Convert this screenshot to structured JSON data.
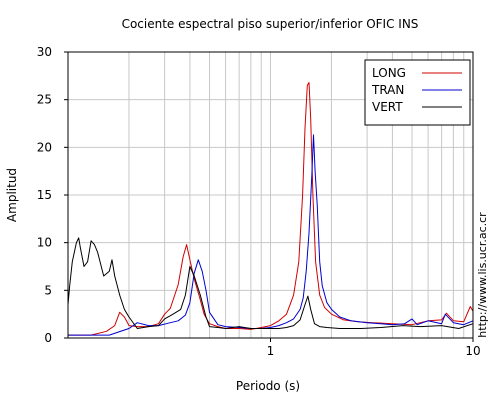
{
  "chart_data": {
    "type": "line",
    "title": "Cociente espectral piso superior/inferior  OFIC INS",
    "xlabel": "Periodo (s)",
    "ylabel": "Amplitud",
    "x_scale": "log",
    "xlim": [
      0.1,
      10
    ],
    "ylim": [
      0,
      30
    ],
    "x_tick_labels": [
      {
        "value": 1,
        "label": "1"
      },
      {
        "value": 10,
        "label": "10"
      }
    ],
    "y_ticks": [
      0,
      5,
      10,
      15,
      20,
      25,
      30
    ],
    "grid": true,
    "legend_position": "top-right",
    "side_annotation": "http://www.lis.ucr.ac.cr",
    "series": [
      {
        "name": "LONG",
        "color": "#d00000",
        "x": [
          0.1,
          0.13,
          0.155,
          0.17,
          0.18,
          0.19,
          0.2,
          0.22,
          0.25,
          0.28,
          0.3,
          0.32,
          0.35,
          0.37,
          0.385,
          0.4,
          0.42,
          0.45,
          0.47,
          0.5,
          0.55,
          0.6,
          0.7,
          0.8,
          0.9,
          1.0,
          1.1,
          1.2,
          1.3,
          1.38,
          1.44,
          1.48,
          1.52,
          1.55,
          1.58,
          1.62,
          1.67,
          1.75,
          1.85,
          2.0,
          2.3,
          2.7,
          3.2,
          4.0,
          5.0,
          6.0,
          7.0,
          7.4,
          8.0,
          9.0,
          9.7,
          10.0
        ],
        "values": [
          0.3,
          0.3,
          0.7,
          1.3,
          2.7,
          2.2,
          1.3,
          1.2,
          1.2,
          1.5,
          2.5,
          3.1,
          5.6,
          8.5,
          9.8,
          8.2,
          6.2,
          4.0,
          2.5,
          1.5,
          1.2,
          1.0,
          1.0,
          0.9,
          1.1,
          1.3,
          1.8,
          2.5,
          4.5,
          8.0,
          15.0,
          22.0,
          26.5,
          26.8,
          23.0,
          15.0,
          8.0,
          4.5,
          3.2,
          2.5,
          1.9,
          1.7,
          1.6,
          1.5,
          1.4,
          1.8,
          1.9,
          2.6,
          1.8,
          1.7,
          3.3,
          2.8
        ]
      },
      {
        "name": "TRAN",
        "color": "#0000d0",
        "x": [
          0.1,
          0.16,
          0.2,
          0.22,
          0.25,
          0.28,
          0.32,
          0.35,
          0.38,
          0.4,
          0.42,
          0.44,
          0.46,
          0.48,
          0.5,
          0.55,
          0.6,
          0.7,
          0.8,
          0.9,
          1.0,
          1.1,
          1.2,
          1.3,
          1.4,
          1.45,
          1.5,
          1.55,
          1.6,
          1.63,
          1.66,
          1.7,
          1.75,
          1.8,
          1.9,
          2.0,
          2.2,
          2.5,
          3.0,
          3.5,
          4.0,
          4.6,
          5.0,
          5.3,
          6.0,
          7.0,
          7.3,
          8.0,
          9.0,
          10.0
        ],
        "values": [
          0.3,
          0.3,
          1.0,
          1.6,
          1.3,
          1.3,
          1.6,
          1.8,
          2.4,
          3.7,
          6.8,
          8.2,
          7.0,
          5.0,
          2.7,
          1.4,
          1.2,
          1.1,
          1.0,
          1.0,
          1.1,
          1.3,
          1.6,
          2.0,
          3.0,
          4.2,
          7.0,
          11.0,
          17.0,
          21.3,
          17.5,
          14.0,
          8.0,
          5.5,
          3.7,
          3.0,
          2.2,
          1.8,
          1.6,
          1.5,
          1.4,
          1.5,
          2.0,
          1.4,
          1.8,
          1.5,
          2.5,
          1.6,
          1.4,
          1.8
        ]
      },
      {
        "name": "VERT",
        "color": "#000000",
        "x": [
          0.1,
          0.102,
          0.105,
          0.11,
          0.113,
          0.115,
          0.12,
          0.125,
          0.13,
          0.135,
          0.14,
          0.15,
          0.16,
          0.165,
          0.17,
          0.18,
          0.19,
          0.2,
          0.22,
          0.25,
          0.28,
          0.3,
          0.33,
          0.36,
          0.38,
          0.4,
          0.42,
          0.45,
          0.48,
          0.5,
          0.55,
          0.6,
          0.7,
          0.8,
          0.9,
          1.0,
          1.1,
          1.2,
          1.3,
          1.4,
          1.48,
          1.53,
          1.58,
          1.65,
          1.75,
          1.9,
          2.2,
          2.8,
          3.5,
          4.5,
          5.5,
          7.0,
          8.5,
          10.0
        ],
        "values": [
          3.5,
          5.5,
          8.0,
          10.0,
          10.5,
          9.5,
          7.5,
          8.0,
          10.2,
          9.8,
          9.0,
          6.5,
          7.0,
          8.2,
          6.5,
          4.5,
          3.0,
          2.2,
          1.0,
          1.2,
          1.3,
          2.0,
          2.5,
          3.0,
          4.5,
          7.5,
          6.5,
          4.5,
          2.2,
          1.2,
          1.1,
          1.0,
          1.2,
          1.0,
          1.0,
          1.0,
          1.0,
          1.1,
          1.3,
          1.9,
          3.5,
          4.4,
          3.0,
          1.5,
          1.2,
          1.1,
          1.0,
          1.0,
          1.1,
          1.3,
          1.2,
          1.3,
          1.0,
          1.5
        ]
      }
    ]
  }
}
